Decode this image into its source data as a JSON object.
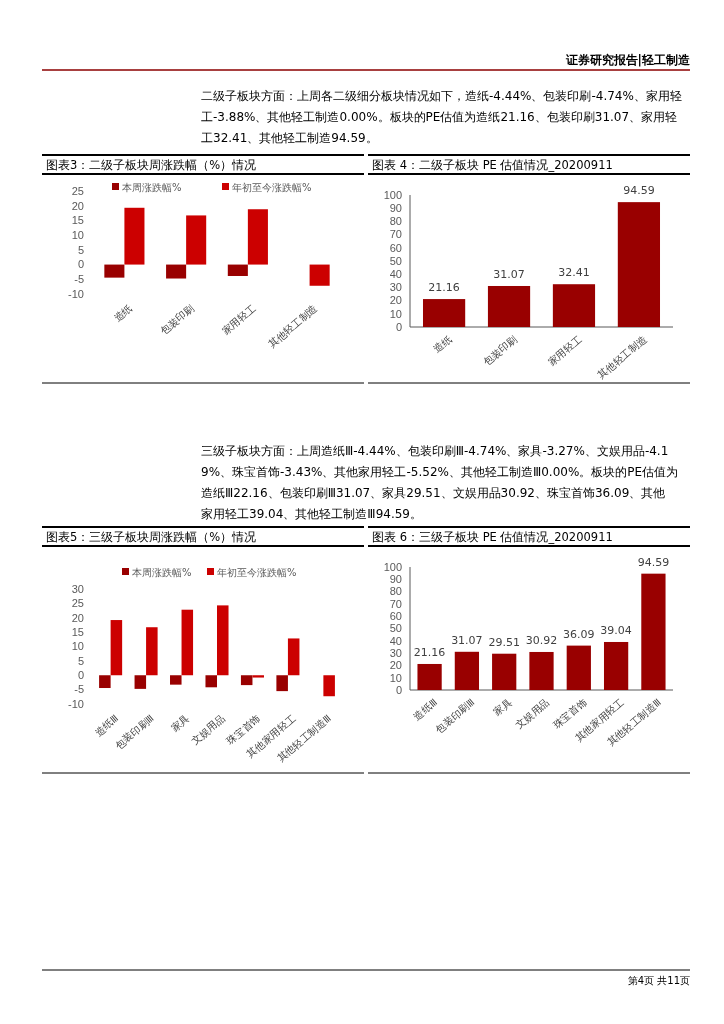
{
  "chart_data": [
    {
      "type": "bar",
      "title": "图表3：二级子板块周涨跌幅（%）情况",
      "categories": [
        "造纸",
        "包装印刷",
        "家用轻工",
        "其他轻工制造"
      ],
      "series": [
        {
          "name": "本周涨跌幅%",
          "color": "#990000",
          "values": [
            -4.44,
            -4.74,
            -3.88,
            0.0
          ]
        },
        {
          "name": "年初至今涨跌幅%",
          "color": "#cc0000",
          "values": [
            19.3,
            16.7,
            18.8,
            -7.2
          ]
        }
      ],
      "ylim": [
        -10,
        25
      ],
      "yticks": [
        -10,
        -5,
        0,
        5,
        10,
        15,
        20,
        25
      ],
      "legend": "top",
      "annotations": [
        "证券研究报告|轻工制造",
        "二级子板块方面：上周各二级细分板块情况如下，造纸-4.44%、包装印刷-4.74%、家用轻工-3.88%、其他轻工制造0.00%。板块的PE估值为造纸21.16、包装印刷31.07、家用轻工32.41、其他轻工制造94.59。"
      ]
    },
    {
      "type": "bar",
      "title": "图表 4：二级子板块 PE 估值情况_20200911",
      "categories": [
        "造纸",
        "包装印刷",
        "家用轻工",
        "其他轻工制造"
      ],
      "values": [
        21.16,
        31.07,
        32.41,
        94.59
      ],
      "color": "#990000",
      "ylim": [
        0,
        100
      ],
      "yticks": [
        0,
        10,
        20,
        30,
        40,
        50,
        60,
        70,
        80,
        90,
        100
      ],
      "data_labels": true
    },
    {
      "type": "bar",
      "title": "图表5：三级子板块周涨跌幅（%）情况",
      "categories": [
        "造纸Ⅲ",
        "包装印刷Ⅲ",
        "家具",
        "文娱用品",
        "珠宝首饰",
        "其他家用轻工",
        "其他轻工制造Ⅲ"
      ],
      "series": [
        {
          "name": "本周涨跌幅%",
          "color": "#990000",
          "values": [
            -4.44,
            -4.74,
            -3.27,
            -4.19,
            -3.43,
            -5.52,
            0.0
          ]
        },
        {
          "name": "年初至今涨跌幅%",
          "color": "#cc0000",
          "values": [
            19.2,
            16.7,
            22.8,
            24.3,
            -0.8,
            12.8,
            -7.3
          ]
        }
      ],
      "ylim": [
        -10,
        30
      ],
      "yticks": [
        -10,
        -5,
        0,
        5,
        10,
        15,
        20,
        25,
        30
      ],
      "legend": "top",
      "annotations": [
        "三级子板块方面：上周造纸Ⅲ-4.44%、包装印刷Ⅲ-4.74%、家具-3.27%、文娱用品-4.19%、珠宝首饰-3.43%、其他家用轻工-5.52%、其他轻工制造Ⅲ0.00%。板块的PE估值为造纸Ⅲ22.16、包装印刷Ⅲ31.07、家具29.51、文娱用品30.92、珠宝首饰36.09、其他家用轻工39.04、其他轻工制造Ⅲ94.59。"
      ]
    },
    {
      "type": "bar",
      "title": "图表 6：三级子板块 PE 估值情况_20200911",
      "categories": [
        "造纸Ⅲ",
        "包装印刷Ⅲ",
        "家具",
        "文娱用品",
        "珠宝首饰",
        "其他家用轻工",
        "其他轻工制造Ⅲ"
      ],
      "values": [
        21.16,
        31.07,
        29.51,
        30.92,
        36.09,
        39.04,
        94.59
      ],
      "color": "#990000",
      "ylim": [
        0,
        100
      ],
      "yticks": [
        0,
        10,
        20,
        30,
        40,
        50,
        60,
        70,
        80,
        90,
        100
      ],
      "data_labels": true,
      "annotations": [
        "第4页 共11页"
      ]
    }
  ]
}
